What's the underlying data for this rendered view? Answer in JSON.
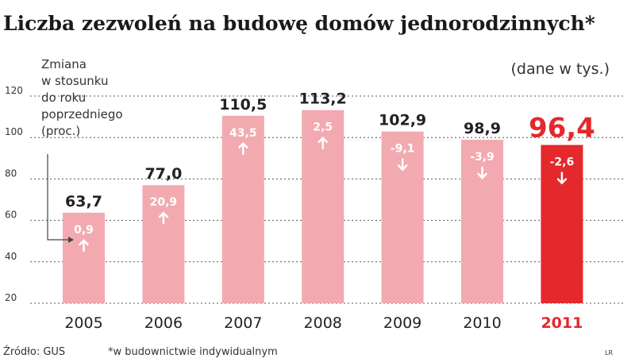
{
  "chart_data": {
    "type": "bar",
    "title": "Liczba zezwoleń na budowę domów jednorodzinnych*",
    "unit_note": "(dane w tys.)",
    "change_legend": [
      "Zmiana",
      "w stosunku",
      "do roku",
      "poprzedniego",
      "(proc.)"
    ],
    "categories": [
      "2005",
      "2006",
      "2007",
      "2008",
      "2009",
      "2010",
      "2011"
    ],
    "values": [
      63.7,
      77.0,
      110.5,
      113.2,
      102.9,
      98.9,
      96.4
    ],
    "value_labels": [
      "63,7",
      "77,0",
      "110,5",
      "113,2",
      "102,9",
      "98,9",
      "96,4"
    ],
    "changes": [
      0.9,
      20.9,
      43.5,
      2.5,
      -9.1,
      -3.9,
      -2.6
    ],
    "change_labels": [
      "0,9",
      "20,9",
      "43,5",
      "2,5",
      "-9,1",
      "-3,9",
      "-2,6"
    ],
    "yticks": [
      20,
      40,
      60,
      80,
      100,
      120
    ],
    "yticks_labels": [
      "20",
      "40",
      "60",
      "80",
      "100",
      "120"
    ],
    "ylim": [
      20,
      120
    ],
    "grid": true,
    "highlight_index": 6,
    "colors": {
      "bar": "#f2aab0",
      "highlight": "#e4282c",
      "grid": "#555555",
      "text": "#222222"
    },
    "source": "Źródło: GUS",
    "footnote": "*w budownictwie indywidualnym",
    "credit": "LR"
  }
}
